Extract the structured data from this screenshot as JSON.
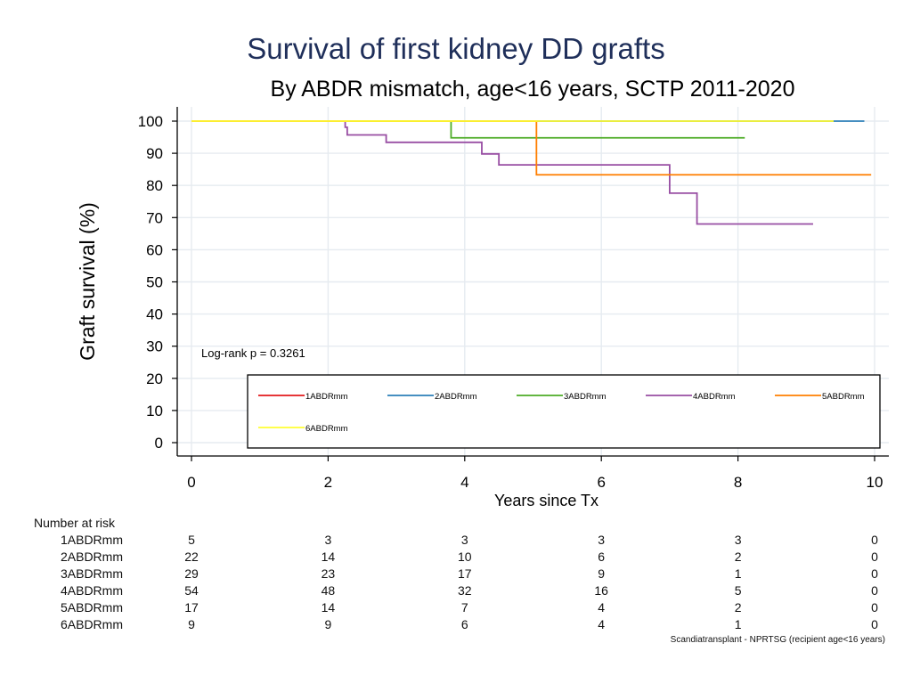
{
  "colors": {
    "title": "#1f2f5a",
    "grid": "#e6ebf0",
    "axis": "#000000",
    "series": [
      "#e31a1c",
      "#2c7fb8",
      "#4dac26",
      "#984ea3",
      "#ff7f00",
      "#ffff33"
    ]
  },
  "chart_data": {
    "type": "line",
    "title": "Survival of first kidney DD grafts",
    "subtitle": "By ABDR mismatch, age<16 years, SCTP 2011-2020",
    "xlabel": "Years since Tx",
    "ylabel": "Graft survival (%)",
    "xlim": [
      0,
      10
    ],
    "ylim": [
      0,
      100
    ],
    "xticks": [
      0,
      2,
      4,
      6,
      8,
      10
    ],
    "yticks": [
      0,
      10,
      20,
      30,
      40,
      50,
      60,
      70,
      80,
      90,
      100
    ],
    "annotation": "Log-rank p = 0.3261",
    "legend_position": "bottom-right inside plot",
    "series": [
      {
        "name": "1ABDRmm",
        "steps": [
          [
            0,
            100
          ],
          [
            9.4,
            100
          ]
        ]
      },
      {
        "name": "2ABDRmm",
        "steps": [
          [
            0,
            100
          ],
          [
            9.85,
            100
          ]
        ]
      },
      {
        "name": "3ABDRmm",
        "steps": [
          [
            0,
            100
          ],
          [
            3.8,
            94.8
          ],
          [
            8.1,
            94.8
          ]
        ]
      },
      {
        "name": "4ABDRmm",
        "steps": [
          [
            0,
            100
          ],
          [
            2.25,
            98.1
          ],
          [
            2.28,
            95.7
          ],
          [
            2.85,
            93.4
          ],
          [
            4.25,
            89.8
          ],
          [
            4.5,
            86.4
          ],
          [
            7.0,
            77.6
          ],
          [
            7.4,
            68.0
          ],
          [
            9.1,
            68.0
          ]
        ]
      },
      {
        "name": "5ABDRmm",
        "steps": [
          [
            0,
            100
          ],
          [
            5.05,
            83.3
          ],
          [
            9.95,
            83.3
          ]
        ]
      },
      {
        "name": "6ABDRmm",
        "steps": [
          [
            0,
            100
          ],
          [
            9.4,
            100
          ]
        ]
      }
    ]
  },
  "risk_table": {
    "title": "Number at risk",
    "times": [
      0,
      2,
      4,
      6,
      8,
      10
    ],
    "rows": [
      {
        "label": "1ABDRmm",
        "values": [
          "5",
          "3",
          "3",
          "3",
          "3",
          "0"
        ]
      },
      {
        "label": "2ABDRmm",
        "values": [
          "22",
          "14",
          "10",
          "6",
          "2",
          "0"
        ]
      },
      {
        "label": "3ABDRmm",
        "values": [
          "29",
          "23",
          "17",
          "9",
          "1",
          "0"
        ]
      },
      {
        "label": "4ABDRmm",
        "values": [
          "54",
          "48",
          "32",
          "16",
          "5",
          "0"
        ]
      },
      {
        "label": "5ABDRmm",
        "values": [
          "17",
          "14",
          "7",
          "4",
          "2",
          "0"
        ]
      },
      {
        "label": "6ABDRmm",
        "values": [
          "9",
          "9",
          "6",
          "4",
          "1",
          "0"
        ]
      }
    ]
  },
  "source_note": "Scandiatransplant - NPRTSG (recipient age<16 years)"
}
